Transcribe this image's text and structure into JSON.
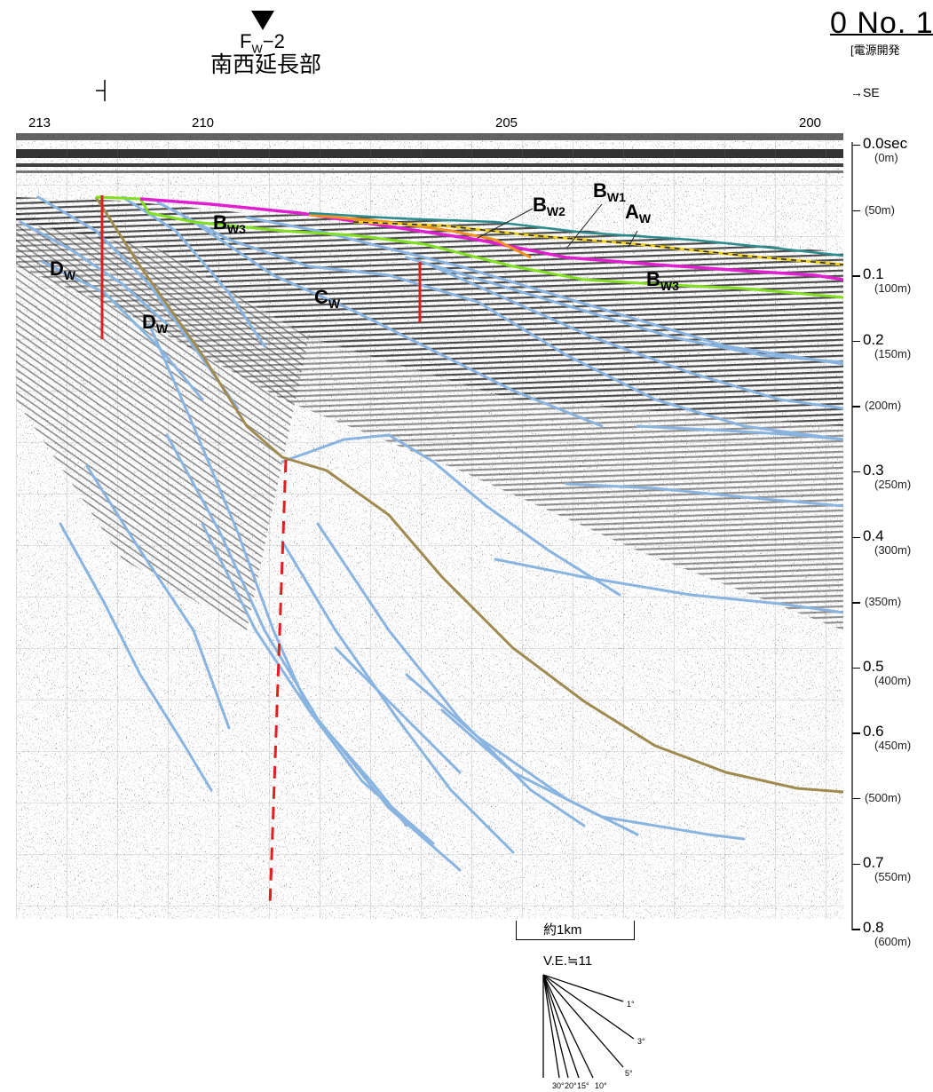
{
  "header": {
    "profile_no": "0 No. 1",
    "organization": "[電源開発",
    "fault_symbol": "F",
    "fault_sub": "W",
    "fault_num": "−2",
    "place_label": "南西延長部",
    "direction": "→SE"
  },
  "shot_points": [
    "213",
    "210",
    "205",
    "200"
  ],
  "time_axis": {
    "labels": [
      {
        "sec": "0.0sec",
        "depth": "(0m)"
      },
      {
        "sec": "",
        "depth": "(50m)"
      },
      {
        "sec": "0.1",
        "depth": "(100m)"
      },
      {
        "sec": "0.2",
        "depth": "(150m)"
      },
      {
        "sec": "",
        "depth": "(200m)"
      },
      {
        "sec": "0.3",
        "depth": "(250m)"
      },
      {
        "sec": "0.4",
        "depth": "(300m)"
      },
      {
        "sec": "",
        "depth": "(350m)"
      },
      {
        "sec": "0.5",
        "depth": "(400m)"
      },
      {
        "sec": "0.6",
        "depth": "(450m)"
      },
      {
        "sec": "",
        "depth": "(500m)"
      },
      {
        "sec": "0.7",
        "depth": "(550m)"
      },
      {
        "sec": "0.8",
        "depth": "(600m)"
      }
    ]
  },
  "units": {
    "aw": "A",
    "aw_sub": "W",
    "bw1": "B",
    "bw1_sub": "W1",
    "bw2": "B",
    "bw2_sub": "W2",
    "bw3": "B",
    "bw3_sub": "W3",
    "cw": "C",
    "cw_sub": "W",
    "dw": "D",
    "dw_sub": "W"
  },
  "scale": {
    "length": "約1km",
    "vertical_exaggeration": "V.E.≒11",
    "dip_labels": [
      "1°",
      "3°",
      "5°",
      "10°",
      "15°",
      "20°",
      "30°"
    ]
  },
  "colors": {
    "aw_top": "#2a8c8c",
    "aw_base": "#f0d020",
    "bw1": "#e020d0",
    "bw2": "#f09020",
    "bw3": "#80e020",
    "horizon": "#8ab4e0",
    "unconformity": "#a08a50",
    "fault": "#e02020"
  }
}
